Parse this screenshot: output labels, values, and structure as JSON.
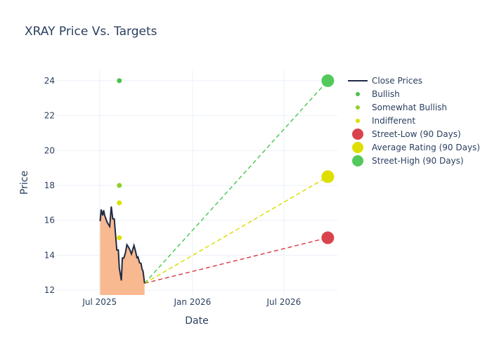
{
  "chart_data": {
    "type": "line",
    "title": "XRAY Price Vs. Targets",
    "xlabel": "Date",
    "ylabel": "Price",
    "xlim": [
      "2025-04-06",
      "2026-10-15"
    ],
    "ylim": [
      11.72,
      24.6
    ],
    "x_ticks": [
      {
        "date": "2025-07-01",
        "label": "Jul 2025"
      },
      {
        "date": "2026-01-01",
        "label": "Jan 2026"
      },
      {
        "date": "2026-07-01",
        "label": "Jul 2026"
      }
    ],
    "y_ticks": [
      12,
      14,
      16,
      18,
      20,
      22,
      24
    ],
    "grid": true,
    "legend_position": "right",
    "close_prices": {
      "name": "Close Prices",
      "color": "#1f2a44",
      "fill_color": "#f9b990",
      "points": [
        [
          "2025-07-02",
          15.95
        ],
        [
          "2025-07-04",
          16.62
        ],
        [
          "2025-07-07",
          16.28
        ],
        [
          "2025-07-09",
          16.58
        ],
        [
          "2025-07-11",
          16.28
        ],
        [
          "2025-07-16",
          15.88
        ],
        [
          "2025-07-21",
          15.65
        ],
        [
          "2025-07-24",
          16.79
        ],
        [
          "2025-07-27",
          16.08
        ],
        [
          "2025-07-30",
          16.08
        ],
        [
          "2025-08-04",
          14.3
        ],
        [
          "2025-08-07",
          14.3
        ],
        [
          "2025-08-09",
          13.26
        ],
        [
          "2025-08-13",
          12.55
        ],
        [
          "2025-08-15",
          13.84
        ],
        [
          "2025-08-18",
          13.84
        ],
        [
          "2025-08-21",
          14.13
        ],
        [
          "2025-08-24",
          14.6
        ],
        [
          "2025-08-27",
          14.47
        ],
        [
          "2025-08-30",
          14.3
        ],
        [
          "2025-09-02",
          14.07
        ],
        [
          "2025-09-07",
          14.56
        ],
        [
          "2025-09-10",
          14.24
        ],
        [
          "2025-09-13",
          13.86
        ],
        [
          "2025-09-15",
          13.9
        ],
        [
          "2025-09-18",
          13.57
        ],
        [
          "2025-09-21",
          13.53
        ],
        [
          "2025-09-23",
          13.2
        ],
        [
          "2025-09-25",
          13.09
        ],
        [
          "2025-09-28",
          12.39
        ]
      ]
    },
    "ratings": [
      {
        "name": "Bullish",
        "color": "#4cc24c",
        "points": [
          [
            "2025-08-09",
            24
          ]
        ]
      },
      {
        "name": "Somewhat Bullish",
        "color": "#8ed12a",
        "points": [
          [
            "2025-08-09",
            18
          ]
        ]
      },
      {
        "name": "Indifferent",
        "color": "#dede00",
        "points": [
          [
            "2025-08-09",
            17
          ],
          [
            "2025-08-09",
            15
          ]
        ]
      }
    ],
    "targets": [
      {
        "name": "Street-Low (90 Days)",
        "color": "#d9434d",
        "date": "2026-09-26",
        "value": 15
      },
      {
        "name": "Average Rating (90 Days)",
        "color": "#dede00",
        "date": "2026-09-26",
        "value": 18.5
      },
      {
        "name": "Street-High (90 Days)",
        "color": "#52c95a",
        "date": "2026-09-26",
        "value": 24
      }
    ]
  }
}
